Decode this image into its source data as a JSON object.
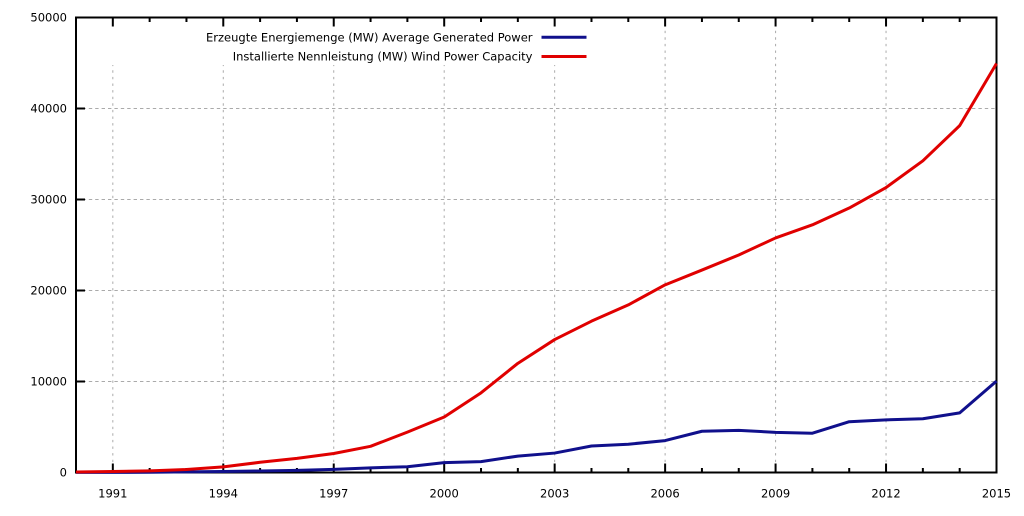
{
  "chart_data": {
    "type": "line",
    "title": "",
    "xlabel": "",
    "ylabel": "",
    "x": [
      1990,
      1991,
      1992,
      1993,
      1994,
      1995,
      1996,
      1997,
      1998,
      1999,
      2000,
      2001,
      2002,
      2003,
      2004,
      2005,
      2006,
      2007,
      2008,
      2009,
      2010,
      2011,
      2012,
      2013,
      2014,
      2015
    ],
    "series": [
      {
        "name": "Erzeugte Energiemenge (MW) Average Generated Power",
        "color": "#10108c",
        "values": [
          8,
          11,
          31,
          68,
          104,
          171,
          232,
          339,
          512,
          631,
          1086,
          1200,
          1802,
          2136,
          2912,
          3108,
          3506,
          4533,
          4632,
          4412,
          4314,
          5580,
          5784,
          5903,
          6548,
          10046
        ]
      },
      {
        "name": "Installierte Nennleistung (MW) Wind Power Capacity",
        "color": "#e00000",
        "values": [
          55,
          106,
          174,
          326,
          618,
          1121,
          1549,
          2089,
          2877,
          4435,
          6097,
          8754,
          11994,
          14609,
          16629,
          18415,
          20622,
          22247,
          23903,
          25777,
          27214,
          29060,
          31315,
          34250,
          38116,
          44947
        ]
      }
    ],
    "xlim": [
      1990,
      2015
    ],
    "ylim": [
      0,
      50000
    ],
    "x_major_ticks": [
      1991,
      1994,
      1997,
      2000,
      2003,
      2006,
      2009,
      2012,
      2015
    ],
    "x_major_tick_labels": [
      "1991",
      "1994",
      "1997",
      "2000",
      "2003",
      "2006",
      "2009",
      "2012",
      "2015"
    ],
    "x_minor_tick_step": 1,
    "y_major_ticks": [
      0,
      10000,
      20000,
      30000,
      40000,
      50000
    ],
    "y_major_tick_labels": [
      "0",
      "10000",
      "20000",
      "30000",
      "40000",
      "50000"
    ],
    "grid": "dashed major gridlines on",
    "legend_position": "top center inside plot",
    "legend_opaque_box": true,
    "colors": {
      "background": "#ffffff",
      "axis": "#000000",
      "grid": "#aaaaaa",
      "text": "#000000"
    }
  }
}
